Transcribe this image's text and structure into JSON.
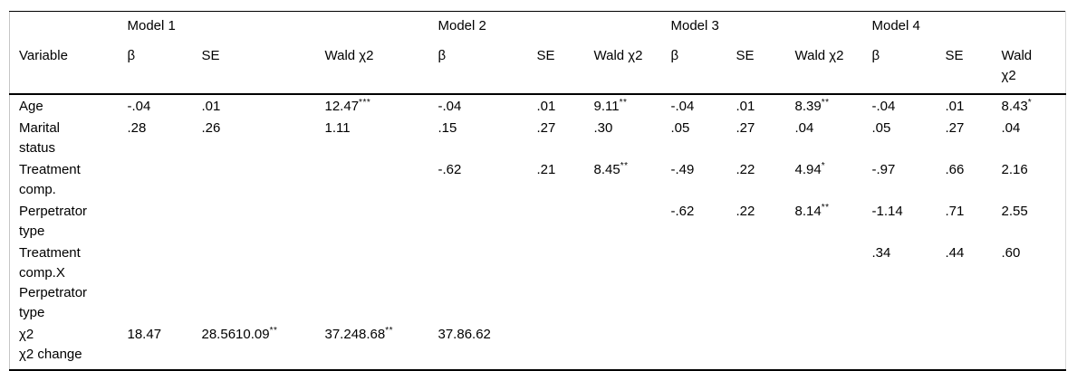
{
  "table": {
    "corner_label": "Variable",
    "model_headers": [
      "Model 1",
      "Model 2",
      "Model 3",
      "Model 4"
    ],
    "sub_headers": [
      "β",
      "SE",
      "Wald χ2",
      "β",
      "SE",
      "Wald χ2",
      "β",
      "SE",
      "Wald χ2",
      "β",
      "SE",
      "Wald\nχ2"
    ],
    "rows": [
      {
        "variable": "Age",
        "cells": [
          {
            "v": "-.04"
          },
          {
            "v": ".01"
          },
          {
            "v": "12.47",
            "sup": "***"
          },
          {
            "v": "-.04"
          },
          {
            "v": ".01"
          },
          {
            "v": "9.11",
            "sup": "**"
          },
          {
            "v": "-.04"
          },
          {
            "v": ".01"
          },
          {
            "v": "8.39",
            "sup": "**"
          },
          {
            "v": "-.04"
          },
          {
            "v": ".01"
          },
          {
            "v": "8.43",
            "sup": "*"
          }
        ]
      },
      {
        "variable": "Marital\nstatus",
        "cells": [
          {
            "v": ".28"
          },
          {
            "v": ".26"
          },
          {
            "v": "1.11"
          },
          {
            "v": ".15"
          },
          {
            "v": ".27"
          },
          {
            "v": ".30"
          },
          {
            "v": ".05"
          },
          {
            "v": ".27"
          },
          {
            "v": ".04"
          },
          {
            "v": ".05"
          },
          {
            "v": ".27"
          },
          {
            "v": ".04"
          }
        ]
      },
      {
        "variable": "Treatment\ncomp.",
        "cells": [
          {
            "v": ""
          },
          {
            "v": ""
          },
          {
            "v": ""
          },
          {
            "v": "-.62"
          },
          {
            "v": ".21"
          },
          {
            "v": "8.45",
            "sup": "**"
          },
          {
            "v": "-.49"
          },
          {
            "v": ".22"
          },
          {
            "v": "4.94",
            "sup": "*"
          },
          {
            "v": "-.97"
          },
          {
            "v": ".66"
          },
          {
            "v": "2.16"
          }
        ]
      },
      {
        "variable": "Perpetrator\ntype",
        "cells": [
          {
            "v": ""
          },
          {
            "v": ""
          },
          {
            "v": ""
          },
          {
            "v": ""
          },
          {
            "v": ""
          },
          {
            "v": ""
          },
          {
            "v": "-.62"
          },
          {
            "v": ".22"
          },
          {
            "v": "8.14",
            "sup": "**"
          },
          {
            "v": "-1.14"
          },
          {
            "v": ".71"
          },
          {
            "v": "2.55"
          }
        ]
      },
      {
        "variable": "Treatment\ncomp.X\nPerpetrator\ntype",
        "cells": [
          {
            "v": ""
          },
          {
            "v": ""
          },
          {
            "v": ""
          },
          {
            "v": ""
          },
          {
            "v": ""
          },
          {
            "v": ""
          },
          {
            "v": ""
          },
          {
            "v": ""
          },
          {
            "v": ""
          },
          {
            "v": ".34"
          },
          {
            "v": ".44"
          },
          {
            "v": ".60"
          }
        ]
      },
      {
        "variable": "χ2\nχ2 change",
        "cells": [
          {
            "v": "18.47"
          },
          {
            "v": "28.5610.09",
            "sup": "**"
          },
          {
            "v": "37.248.68",
            "sup": "**"
          },
          {
            "v": "37.86.62"
          },
          {
            "v": ""
          },
          {
            "v": ""
          },
          {
            "v": ""
          },
          {
            "v": ""
          },
          {
            "v": ""
          },
          {
            "v": ""
          },
          {
            "v": ""
          },
          {
            "v": ""
          }
        ]
      }
    ]
  }
}
